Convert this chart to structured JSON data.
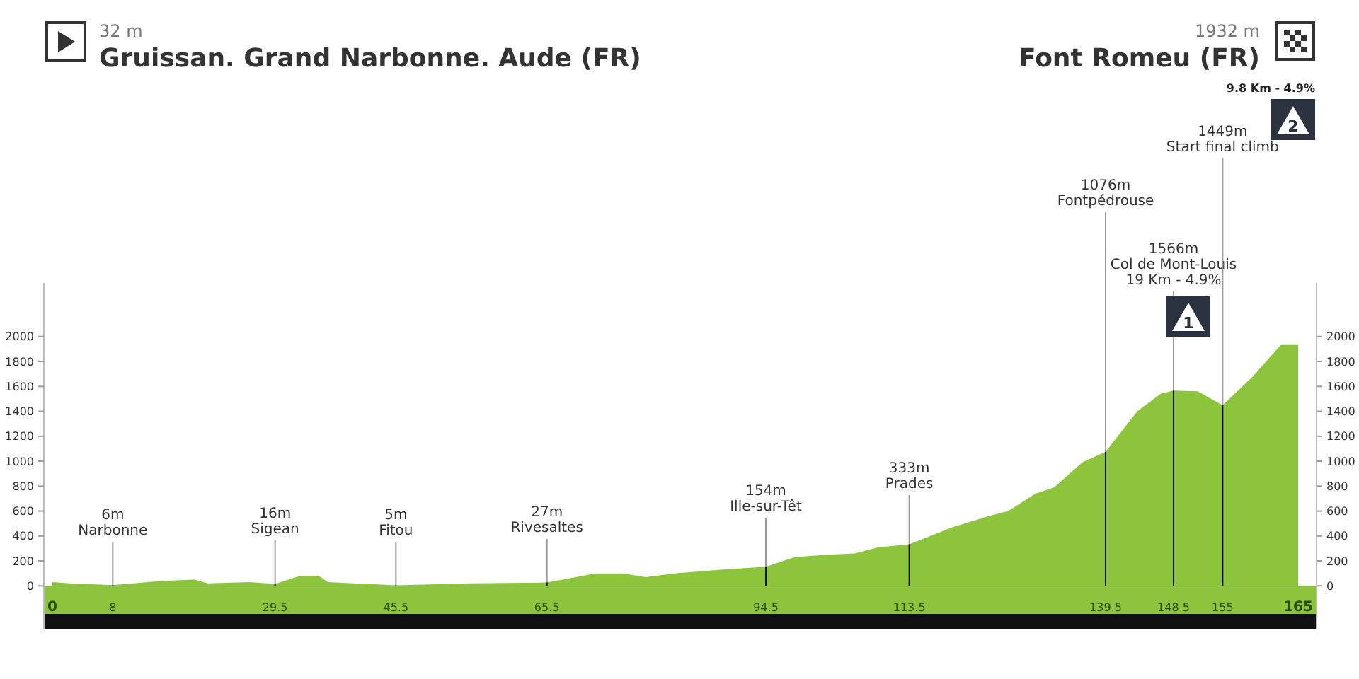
{
  "chart_data": {
    "type": "area",
    "title": "Gruissan. Grand Narbonne. Aude (FR)",
    "subtitle": "Font Romeu (FR)",
    "x": [
      0,
      2.3,
      8,
      14.5,
      18.8,
      20.6,
      26.1,
      29.5,
      32.8,
      35.3,
      36.5,
      45.5,
      55.4,
      65.5,
      67.6,
      71.9,
      75.6,
      78.6,
      82.4,
      88.5,
      94.5,
      98.3,
      102.6,
      106.3,
      109.4,
      113.5,
      119.2,
      124.1,
      126.6,
      130.2,
      132.7,
      136.4,
      139.5,
      143.7,
      146.8,
      148.5,
      151.7,
      155,
      159,
      162.7,
      165
    ],
    "series": [
      {
        "color": "#8cc43c",
        "values": [
          30,
          20,
          6,
          40,
          50,
          20,
          30,
          16,
          80,
          80,
          30,
          5,
          20,
          27,
          50,
          100,
          100,
          70,
          100,
          130,
          154,
          230,
          250,
          260,
          310,
          333,
          470,
          560,
          600,
          740,
          790,
          990,
          1076,
          1400,
          1540,
          1566,
          1560,
          1449,
          1680,
          1932,
          1932
        ]
      }
    ],
    "xlim": [
      0,
      165
    ],
    "xticks": [
      0,
      8,
      29.5,
      45.5,
      65.5,
      94.5,
      113.5,
      139.5,
      148.5,
      155,
      165
    ],
    "ylim": [
      -350,
      2430
    ],
    "yticks": [
      0,
      200,
      400,
      600,
      800,
      1000,
      1200,
      1400,
      1600,
      1800,
      2000
    ],
    "y2lim": [
      -350,
      2430
    ],
    "y2ticks": [
      0,
      200,
      400,
      600,
      800,
      1000,
      1200,
      1400,
      1600,
      1800,
      2000
    ],
    "grid": false,
    "annotations": [
      "32 m",
      "1932 m",
      "9.8 Km - 4.9%",
      "1",
      "2"
    ],
    "ref_lines": [
      {
        "axis": "x",
        "value": 8,
        "label": "6m\nNarbonne"
      },
      {
        "axis": "x",
        "value": 29.5,
        "label": "16m\nSigean"
      },
      {
        "axis": "x",
        "value": 45.5,
        "label": "5m\nFitou"
      },
      {
        "axis": "x",
        "value": 65.5,
        "label": "27m\nRivesaltes"
      },
      {
        "axis": "x",
        "value": 94.5,
        "label": "154m\nIlle-sur-Têt"
      },
      {
        "axis": "x",
        "value": 113.5,
        "label": "333m\nPrades"
      },
      {
        "axis": "x",
        "value": 139.5,
        "label": "1076m\nFontpédrouse"
      },
      {
        "axis": "x",
        "value": 148.5,
        "label": "1566m\nCol de Mont-Louis\n19 Km - 4.9%"
      },
      {
        "axis": "x",
        "value": 155,
        "label": "1449m\nStart final climb"
      }
    ]
  }
}
